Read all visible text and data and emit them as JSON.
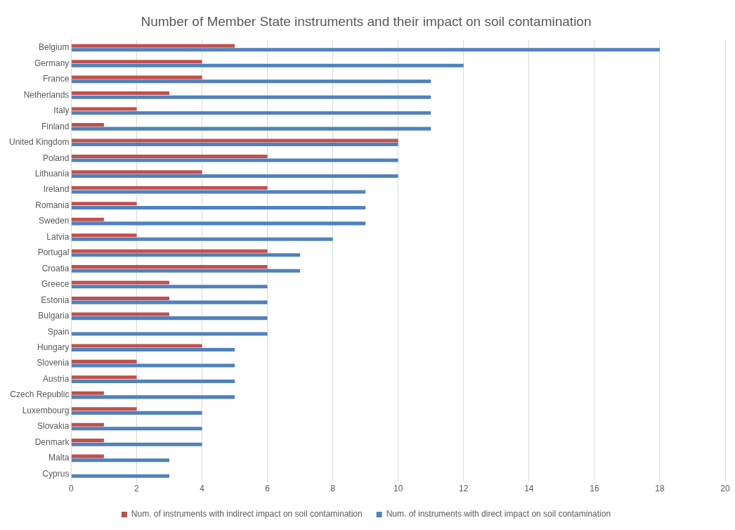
{
  "chart_data": {
    "type": "bar",
    "orientation": "horizontal",
    "title": "Number of Member State instruments and their impact on soil contamination",
    "categories": [
      "Belgium",
      "Germany",
      "France",
      "Netherlands",
      "Italy",
      "Finland",
      "United Kingdom",
      "Poland",
      "Lithuania",
      "Ireland",
      "Romania",
      "Sweden",
      "Latvia",
      "Portugal",
      "Croatia",
      "Greece",
      "Estonia",
      "Bulgaria",
      "Spain",
      "Hungary",
      "Slovenia",
      "Austria",
      "Czech Republic",
      "Luxembourg",
      "Slovakia",
      "Denmark",
      "Malta",
      "Cyprus"
    ],
    "series": [
      {
        "name": "Num. of instruments with indirect impact on soil contamination",
        "color": "#c0504d",
        "values": [
          5,
          4,
          4,
          3,
          2,
          1,
          10,
          6,
          4,
          6,
          2,
          1,
          2,
          6,
          6,
          3,
          3,
          3,
          0,
          4,
          2,
          2,
          1,
          2,
          1,
          1,
          1,
          0
        ]
      },
      {
        "name": "Num. of instruments with direct impact on soil contamination",
        "color": "#4f81bd",
        "values": [
          18,
          12,
          11,
          11,
          11,
          11,
          10,
          10,
          10,
          9,
          9,
          9,
          8,
          7,
          7,
          6,
          6,
          6,
          6,
          5,
          5,
          5,
          5,
          4,
          4,
          4,
          3,
          3
        ]
      }
    ],
    "xlim": [
      0,
      20
    ],
    "xticks": [
      0,
      2,
      4,
      6,
      8,
      10,
      12,
      14,
      16,
      18,
      20
    ],
    "grid": "x",
    "legend": "bottom"
  }
}
